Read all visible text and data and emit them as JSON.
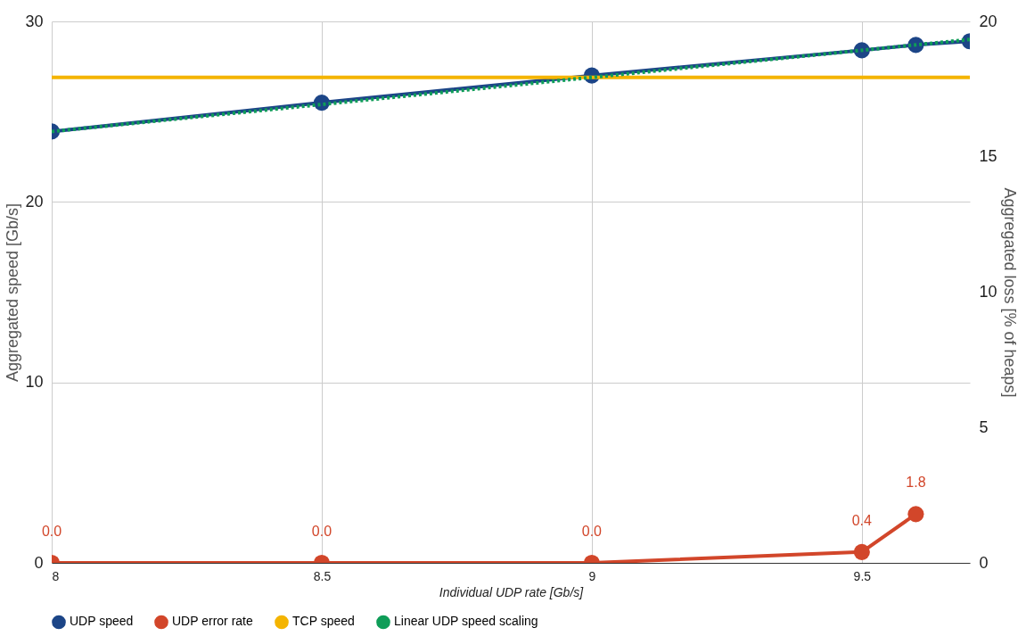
{
  "chart_data": {
    "type": "line",
    "xlabel": "Individual UDP rate [Gb/s]",
    "ylabel": "Aggregated speed [Gb/s]",
    "y2label": "Aggregated loss [% of heaps]",
    "xlim": [
      8,
      9.7
    ],
    "xticks": [
      8,
      8.5,
      9,
      9.5
    ],
    "ylim": [
      0,
      30
    ],
    "yticks": [
      0,
      10,
      20,
      30
    ],
    "y2lim": [
      0,
      20
    ],
    "y2ticks": [
      0,
      5,
      10,
      15,
      20
    ],
    "grid": true,
    "legend": "bottom",
    "series": [
      {
        "name": "UDP speed",
        "color": "#1c4587",
        "marker": "circle",
        "line_style": "solid",
        "x": [
          8,
          8.5,
          9,
          9.5,
          9.6,
          9.7
        ],
        "values": [
          23.9,
          25.5,
          27.0,
          28.4,
          28.7,
          28.9
        ]
      },
      {
        "name": "UDP error rate",
        "color": "#d2462a",
        "marker": "circle",
        "line_style": "solid",
        "axis": "y2",
        "x": [
          8,
          8.5,
          9,
          9.5,
          9.6
        ],
        "values": [
          0,
          0,
          0,
          0.4,
          1.8
        ],
        "value_labels": [
          "0.0",
          "0.0",
          "0.0",
          "0.4",
          "1.8"
        ]
      },
      {
        "name": "TCP speed",
        "color": "#f4b400",
        "marker": "none",
        "line_style": "solid",
        "x": [
          8,
          9.7
        ],
        "values": [
          26.9,
          26.9
        ]
      },
      {
        "name": "Linear UDP speed scaling",
        "color": "#0f9d58",
        "marker": "none",
        "line_style": "dotted",
        "x": [
          8,
          9.7
        ],
        "values": [
          23.9,
          29.0
        ]
      }
    ]
  }
}
